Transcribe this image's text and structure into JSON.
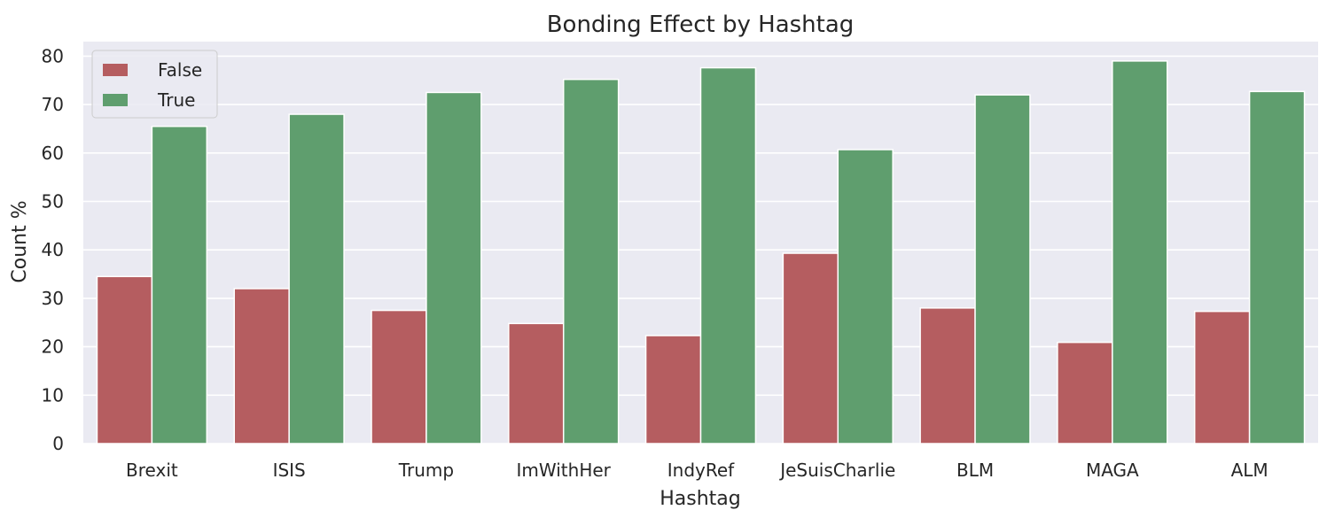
{
  "chart_data": {
    "type": "bar",
    "title": "Bonding Effect by Hashtag",
    "xlabel": "Hashtag",
    "ylabel": "Count %",
    "categories": [
      "Brexit",
      "ISIS",
      "Trump",
      "ImWithHer",
      "IndyRef",
      "JeSuisCharlie",
      "BLM",
      "MAGA",
      "ALM"
    ],
    "series": [
      {
        "name": "False",
        "color": "#b55d60",
        "values": [
          34.5,
          32.0,
          27.5,
          24.8,
          22.3,
          39.3,
          28.0,
          20.9,
          27.3
        ]
      },
      {
        "name": "True",
        "color": "#5f9e6e",
        "values": [
          65.5,
          68.0,
          72.5,
          75.2,
          77.6,
          60.7,
          72.0,
          79.0,
          72.7
        ]
      }
    ],
    "ylim": [
      0,
      83
    ],
    "yticks": [
      "0",
      "10",
      "20",
      "30",
      "40",
      "50",
      "60",
      "70",
      "80"
    ],
    "grid": true,
    "legend_position": "top-left",
    "background_color": "#eaeaf2"
  }
}
